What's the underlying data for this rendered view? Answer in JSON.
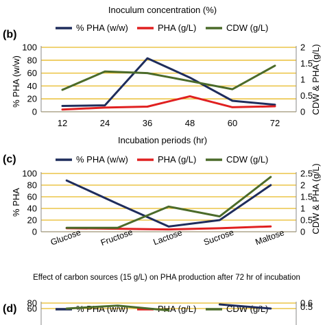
{
  "top_caption": "Inoculum concentration (%)",
  "chart_data": [
    {
      "panel_label": "(b)",
      "type": "line",
      "categories": [
        "12",
        "24",
        "36",
        "48",
        "60",
        "72"
      ],
      "xlabel": "Incubation periods (hr)",
      "ylabel_left": "% PHA (w/w)",
      "ylabel_right": "CDW & PHA (g/L)",
      "ylim_left": [
        0,
        100
      ],
      "yticks_left": [
        "0",
        "20",
        "40",
        "60",
        "80",
        "100"
      ],
      "ylim_right": [
        0,
        2
      ],
      "yticks_right": [
        "0",
        "0.5",
        "1",
        "1.5",
        "2"
      ],
      "grid": true,
      "legend_position": "top",
      "series": [
        {
          "name": "% PHA (w/w)",
          "axis": "left",
          "color": "#1f2d5c",
          "values": [
            9,
            10,
            83,
            53,
            17,
            11
          ]
        },
        {
          "name": "PHA (g/L)",
          "axis": "right",
          "color": "#e02020",
          "values": [
            0.07,
            0.13,
            0.16,
            0.48,
            0.14,
            0.17
          ]
        },
        {
          "name": "CDW (g/L)",
          "axis": "right",
          "color": "#4b6b2a",
          "values": [
            0.68,
            1.25,
            1.2,
            0.95,
            0.7,
            1.43
          ]
        }
      ]
    },
    {
      "panel_label": "(c)",
      "type": "line",
      "categories": [
        "Glucose",
        "Fructose",
        "Lactose",
        "Sucrose",
        "Maltose"
      ],
      "xlabel": "Effect of  carbon sources (15 g/L) on PHA production after 72 hr of incubation",
      "ylabel_left": "% PHA",
      "ylabel_right": "CDW & PHA (g/L)",
      "ylim_left": [
        0,
        100
      ],
      "yticks_left": [
        "0",
        "20",
        "40",
        "60",
        "80",
        "100"
      ],
      "ylim_right": [
        0,
        2.5
      ],
      "yticks_right": [
        "0",
        "0.5",
        "1",
        "1.5",
        "2",
        "2.5"
      ],
      "grid": true,
      "legend_position": "top",
      "series": [
        {
          "name": "% PHA (w/w)",
          "axis": "left",
          "color": "#1f2d5c",
          "values": [
            88,
            48,
            9,
            20,
            80
          ]
        },
        {
          "name": "PHA (g/L)",
          "axis": "right",
          "color": "#e02020",
          "values": [
            0.15,
            0.13,
            0.1,
            0.15,
            0.23
          ]
        },
        {
          "name": "CDW (g/L)",
          "axis": "right",
          "color": "#4b6b2a",
          "values": [
            0.17,
            0.17,
            1.08,
            0.66,
            2.35
          ]
        }
      ]
    },
    {
      "panel_label": "(d)",
      "type": "line",
      "ylim_left": [
        0,
        80
      ],
      "yticks_left": [
        "60",
        "80"
      ],
      "ylim_right": [
        0,
        0.6
      ],
      "yticks_right": [
        "0.5",
        "0.6"
      ],
      "grid": true,
      "legend_position": "top",
      "series": [
        {
          "name": "% PHA (w/w)",
          "axis": "left",
          "color": "#1f2d5c",
          "values": [
            null,
            null,
            null,
            75,
            60
          ]
        },
        {
          "name": "PHA (g/L)",
          "axis": "right",
          "color": "#e02020",
          "values": []
        },
        {
          "name": "CDW (g/L)",
          "axis": "right",
          "color": "#4b6b2a",
          "values": [
            0.45,
            0.53,
            0.4,
            null,
            null
          ]
        }
      ]
    }
  ]
}
